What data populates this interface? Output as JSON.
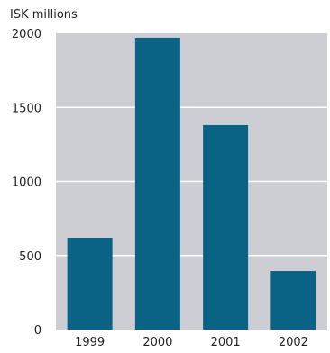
{
  "chart_data": {
    "type": "bar",
    "ylabel": "ISK millions",
    "categories": [
      "1999",
      "2000",
      "2001",
      "2002"
    ],
    "values": [
      620,
      1970,
      1380,
      395
    ],
    "ylim": [
      0,
      2000
    ],
    "yticks": [
      0,
      500,
      1000,
      1500,
      2000
    ],
    "grid": true,
    "colors": {
      "bar": "#0a6385",
      "plot_background": "#cdcdd4",
      "gridline": "#ffffff"
    }
  }
}
